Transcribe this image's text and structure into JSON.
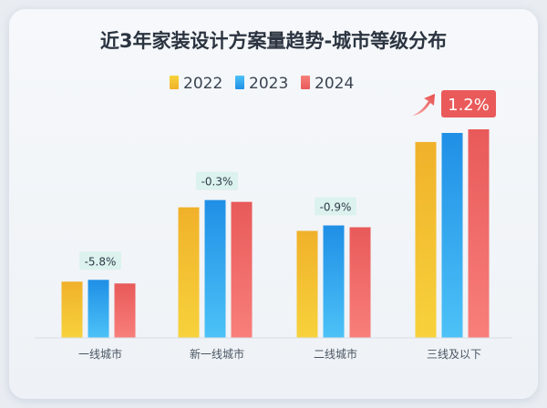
{
  "chart_data": {
    "type": "bar",
    "title": "近3年家装设计方案量趋势-城市等级分布",
    "categories": [
      "一线城市",
      "新一线城市",
      "二线城市",
      "三线及以下"
    ],
    "series": [
      {
        "name": "2022",
        "values": [
          31,
          72,
          59,
          108
        ],
        "color_top": "#f7d23c",
        "color_bottom": "#f0b12a"
      },
      {
        "name": "2023",
        "values": [
          32,
          76,
          62,
          113
        ],
        "color_top": "#4cc2f7",
        "color_bottom": "#1f8fe6"
      },
      {
        "name": "2024",
        "values": [
          30,
          75,
          61,
          115
        ],
        "color_top": "#f87f7a",
        "color_bottom": "#e85a5a"
      }
    ],
    "change_labels": [
      "-5.8%",
      "-0.3%",
      "-0.9%",
      "1.2%"
    ],
    "highlight_index": 3,
    "ylim": [
      0,
      130
    ],
    "xlabel": "",
    "ylabel": "",
    "grid": false,
    "legend_position": "top-center"
  }
}
